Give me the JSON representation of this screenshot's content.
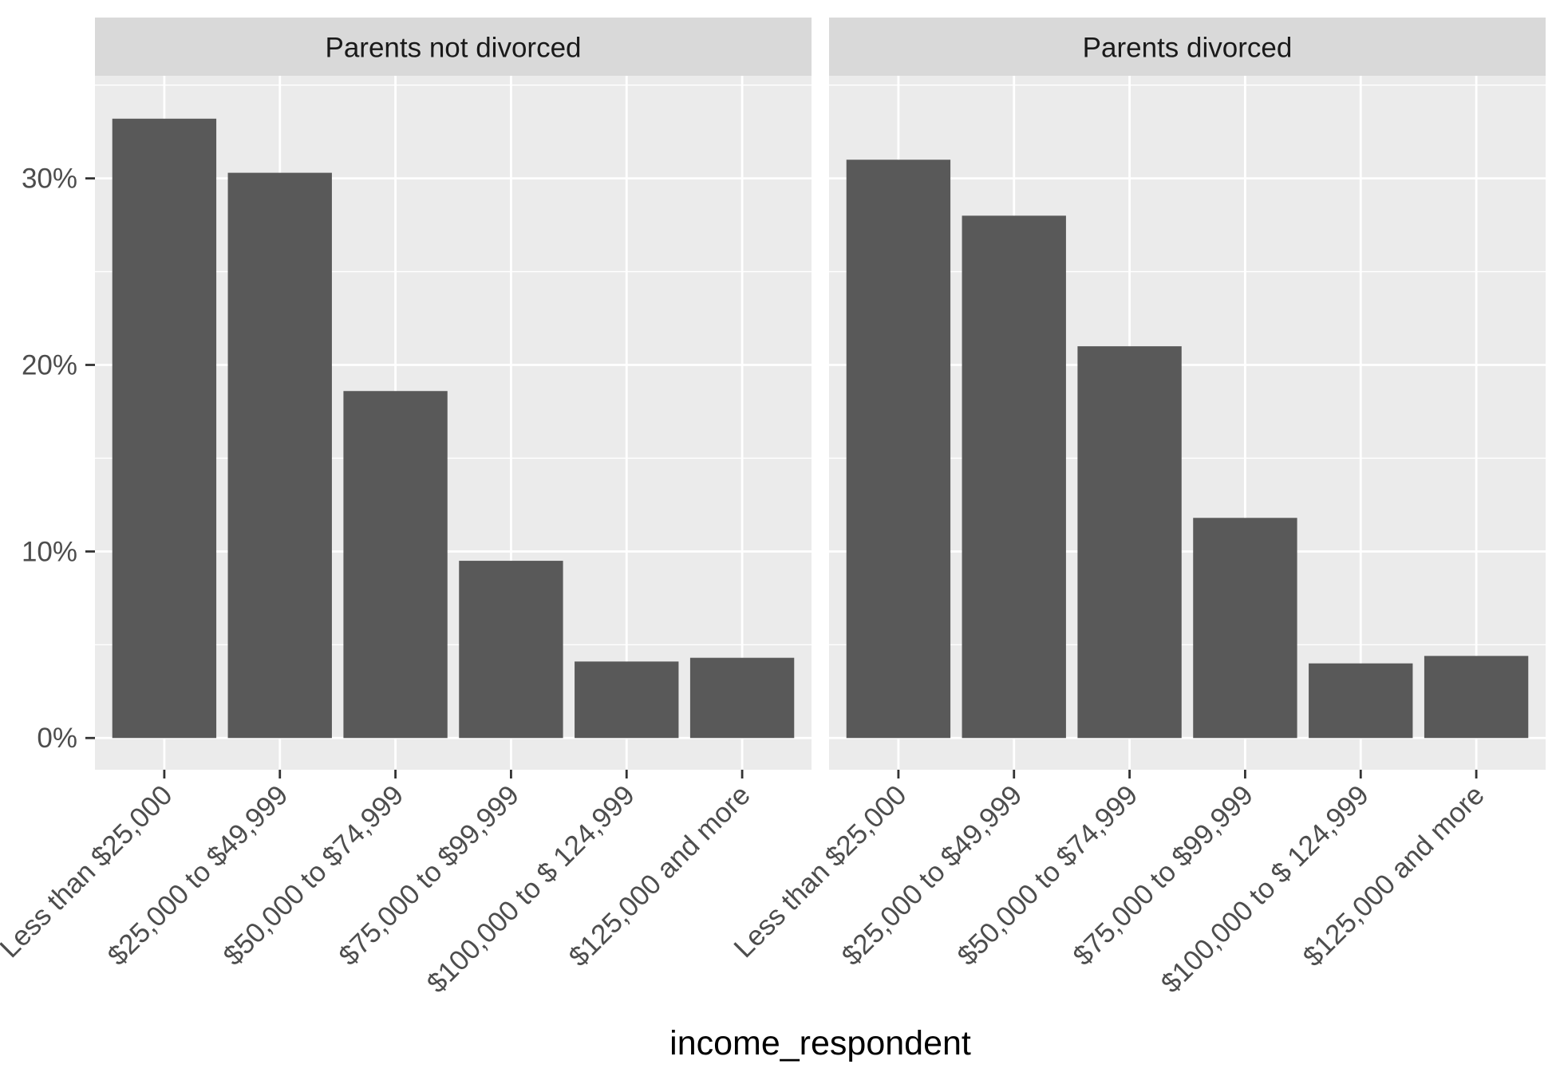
{
  "chart_data": {
    "type": "bar",
    "xlabel": "income_respondent",
    "ylabel": "",
    "ylim": [
      -0.017,
      0.355
    ],
    "y_ticks": [
      0,
      0.1,
      0.2,
      0.3
    ],
    "y_tick_labels": [
      "0%",
      "10%",
      "20%",
      "30%"
    ],
    "grid": true,
    "categories": [
      "Less than $25,000",
      "$25,000 to $49,999",
      "$50,000 to $74,999",
      "$75,000 to $99,999",
      "$100,000 to $ 124,999",
      "$125,000 and more"
    ],
    "panels": [
      {
        "title": "Parents not divorced",
        "values": [
          0.332,
          0.303,
          0.186,
          0.095,
          0.041,
          0.043
        ]
      },
      {
        "title": "Parents divorced",
        "values": [
          0.31,
          0.28,
          0.21,
          0.118,
          0.04,
          0.044
        ]
      }
    ],
    "colors": {
      "bar": "#595959",
      "panel_bg": "#ebebeb",
      "strip_bg": "#d9d9d9",
      "grid": "#ffffff",
      "text": "#4d4d4d",
      "title_text": "#1a1a1a"
    }
  }
}
